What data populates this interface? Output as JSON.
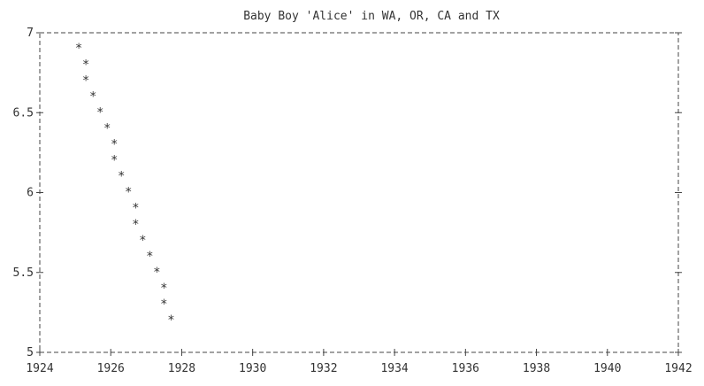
{
  "chart_data": {
    "type": "scatter",
    "title": "Baby Boy 'Alice' in WA, OR, CA and TX",
    "xlabel": "",
    "ylabel": "",
    "xlim": [
      1924,
      1942
    ],
    "ylim": [
      5,
      7
    ],
    "x_ticks": [
      "1924",
      "1926",
      "1928",
      "1930",
      "1932",
      "1934",
      "1936",
      "1938",
      "1940",
      "1942"
    ],
    "y_ticks": [
      "5",
      "5.5",
      "6",
      "6.5",
      "7"
    ],
    "marker": "*",
    "grid": false,
    "points": [
      {
        "x": 1925.1,
        "y": 6.91
      },
      {
        "x": 1925.3,
        "y": 6.81
      },
      {
        "x": 1925.3,
        "y": 6.71
      },
      {
        "x": 1925.5,
        "y": 6.61
      },
      {
        "x": 1925.7,
        "y": 6.51
      },
      {
        "x": 1925.9,
        "y": 6.41
      },
      {
        "x": 1926.1,
        "y": 6.31
      },
      {
        "x": 1926.1,
        "y": 6.21
      },
      {
        "x": 1926.3,
        "y": 6.11
      },
      {
        "x": 1926.5,
        "y": 6.01
      },
      {
        "x": 1926.7,
        "y": 5.91
      },
      {
        "x": 1926.7,
        "y": 5.81
      },
      {
        "x": 1926.9,
        "y": 5.71
      },
      {
        "x": 1927.1,
        "y": 5.61
      },
      {
        "x": 1927.3,
        "y": 5.51
      },
      {
        "x": 1927.5,
        "y": 5.41
      },
      {
        "x": 1927.5,
        "y": 5.31
      },
      {
        "x": 1927.7,
        "y": 5.21
      }
    ]
  }
}
